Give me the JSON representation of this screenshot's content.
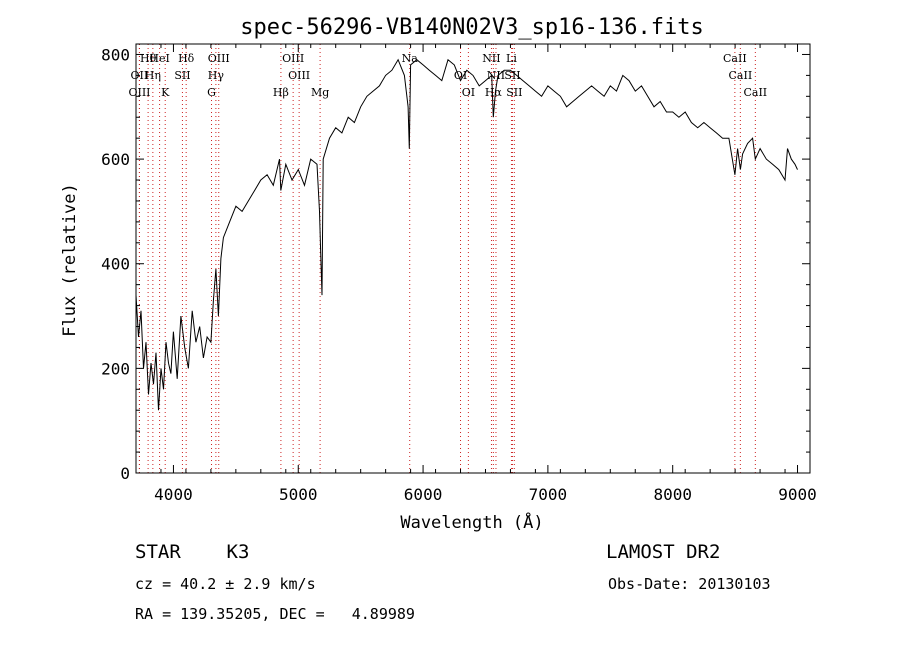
{
  "chart_data": {
    "type": "line",
    "title": "spec-56296-VB140N02V3_sp16-136.fits",
    "xlabel": "Wavelength (Å)",
    "ylabel": "Flux (relative)",
    "xlim": [
      3700,
      9100
    ],
    "ylim": [
      0,
      820
    ],
    "x_ticks": [
      4000,
      5000,
      6000,
      7000,
      8000,
      9000
    ],
    "y_ticks": [
      0,
      200,
      400,
      600,
      800
    ],
    "grid": false,
    "series": [
      {
        "x": [
          3700,
          3720,
          3740,
          3760,
          3780,
          3800,
          3820,
          3840,
          3860,
          3880,
          3900,
          3920,
          3940,
          3960,
          3980,
          4000,
          4030,
          4060,
          4090,
          4120,
          4150,
          4180,
          4210,
          4240,
          4270,
          4300,
          4320,
          4340,
          4360,
          4380,
          4400,
          4450,
          4500,
          4550,
          4600,
          4650,
          4700,
          4750,
          4800,
          4850,
          4860,
          4900,
          4950,
          5000,
          5050,
          5100,
          5150,
          5170,
          5180,
          5190,
          5200,
          5250,
          5300,
          5350,
          5400,
          5450,
          5500,
          5550,
          5600,
          5650,
          5700,
          5750,
          5800,
          5850,
          5880,
          5890,
          5900,
          5950,
          6000,
          6050,
          6100,
          6150,
          6200,
          6250,
          6300,
          6350,
          6400,
          6450,
          6500,
          6550,
          6563,
          6580,
          6600,
          6650,
          6700,
          6750,
          6800,
          6850,
          6900,
          6950,
          7000,
          7050,
          7100,
          7150,
          7200,
          7250,
          7300,
          7350,
          7400,
          7450,
          7500,
          7550,
          7600,
          7650,
          7700,
          7750,
          7800,
          7850,
          7900,
          7950,
          8000,
          8050,
          8100,
          8150,
          8200,
          8250,
          8300,
          8350,
          8400,
          8450,
          8498,
          8520,
          8542,
          8560,
          8600,
          8640,
          8662,
          8700,
          8750,
          8800,
          8850,
          8900,
          8920,
          8950,
          8980,
          9000
        ],
        "y": [
          340,
          260,
          310,
          200,
          250,
          150,
          210,
          170,
          230,
          120,
          200,
          160,
          250,
          210,
          190,
          270,
          180,
          300,
          240,
          200,
          310,
          250,
          280,
          220,
          260,
          250,
          330,
          390,
          300,
          410,
          450,
          480,
          510,
          500,
          520,
          540,
          560,
          570,
          550,
          600,
          540,
          590,
          560,
          580,
          550,
          600,
          590,
          500,
          420,
          340,
          600,
          640,
          660,
          650,
          680,
          670,
          700,
          720,
          730,
          740,
          760,
          770,
          790,
          760,
          700,
          620,
          780,
          790,
          780,
          770,
          760,
          750,
          790,
          780,
          750,
          770,
          760,
          740,
          750,
          760,
          680,
          730,
          760,
          770,
          770,
          760,
          750,
          740,
          730,
          720,
          740,
          730,
          720,
          700,
          710,
          720,
          730,
          740,
          730,
          720,
          740,
          730,
          760,
          750,
          730,
          740,
          720,
          700,
          710,
          690,
          690,
          680,
          690,
          670,
          660,
          670,
          660,
          650,
          640,
          640,
          570,
          620,
          580,
          610,
          630,
          640,
          600,
          620,
          600,
          590,
          580,
          560,
          620,
          600,
          590,
          580
        ]
      }
    ],
    "lines": [
      {
        "label": "Hθ",
        "x": 3797
      },
      {
        "label": "OII",
        "x": 3727
      },
      {
        "label": "OIII",
        "x": 3728
      },
      {
        "label": "HeI",
        "x": 3889
      },
      {
        "label": "Hη",
        "x": 3835
      },
      {
        "label": "K",
        "x": 3934
      },
      {
        "label": "Hδ",
        "x": 4102
      },
      {
        "label": "SII",
        "x": 4072
      },
      {
        "label": "G",
        "x": 4305
      },
      {
        "label": "OIII",
        "x": 4363
      },
      {
        "label": "Hγ",
        "x": 4340
      },
      {
        "label": "Hβ",
        "x": 4861
      },
      {
        "label": "OIII",
        "x": 4959
      },
      {
        "label": "OIII",
        "x": 5007
      },
      {
        "label": "Mg",
        "x": 5175
      },
      {
        "label": "Na",
        "x": 5893
      },
      {
        "label": "OI",
        "x": 6300
      },
      {
        "label": "OI",
        "x": 6363
      },
      {
        "label": "NII",
        "x": 6548
      },
      {
        "label": "NII",
        "x": 6584
      },
      {
        "label": "Hα",
        "x": 6563
      },
      {
        "label": "Li",
        "x": 6708
      },
      {
        "label": "SII",
        "x": 6716
      },
      {
        "label": "SII",
        "x": 6731
      },
      {
        "label": "CaII",
        "x": 8498
      },
      {
        "label": "CaII",
        "x": 8542
      },
      {
        "label": "CaII",
        "x": 8662
      }
    ]
  },
  "info": {
    "object": "STAR",
    "subclass": "K3",
    "survey": "LAMOST DR2",
    "cz": "cz = 40.2 ± 2.9 km/s",
    "obs_date": "Obs-Date: 20130103",
    "coords": "RA = 139.35205, DEC =   4.89989"
  }
}
